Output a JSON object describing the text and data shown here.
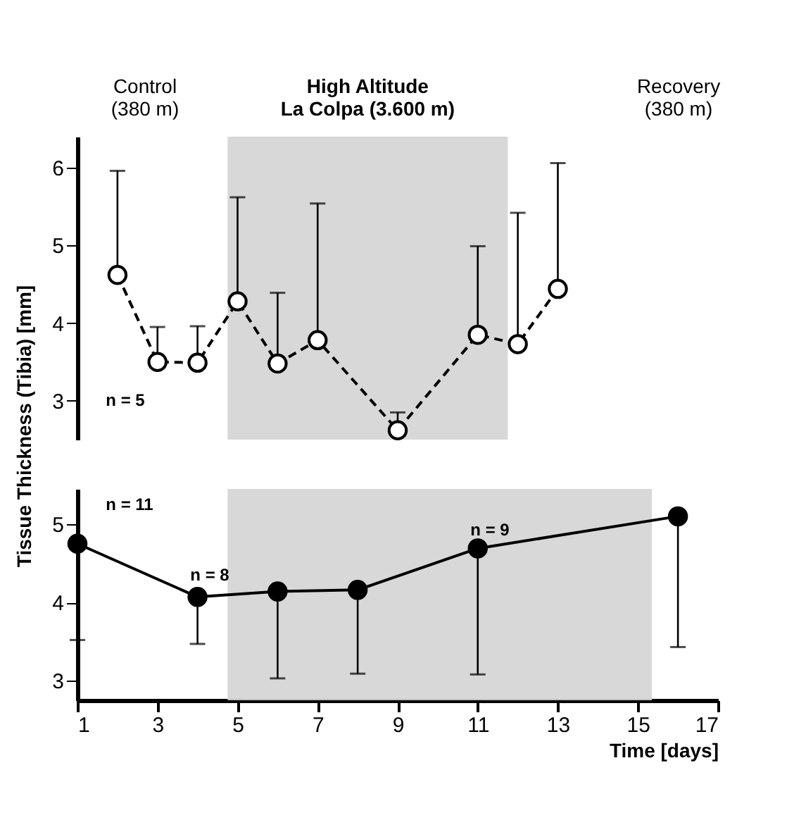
{
  "chart_data": [
    {
      "type": "line",
      "ylabel": "Tissue Thickness (Tibia) [mm]",
      "x": [
        2,
        3,
        4,
        5,
        6,
        7,
        9,
        11,
        12,
        13
      ],
      "xlim": [
        1,
        17
      ],
      "ylim": [
        2.5,
        6.4
      ],
      "yticks": [
        3,
        4,
        5,
        6
      ],
      "tick_labels": "y",
      "grid": false,
      "marker": "circle",
      "series": [
        {
          "color": "#000000",
          "line_style": "dashed",
          "values": [
            4.62,
            3.5,
            3.49,
            4.28,
            3.48,
            3.78,
            2.62,
            3.85,
            3.73,
            4.44
          ],
          "errors": [
            [
              4.62,
              5.96
            ],
            [
              3.5,
              3.95
            ],
            [
              3.49,
              3.96
            ],
            [
              4.28,
              5.62
            ],
            [
              3.48,
              4.39
            ],
            [
              3.78,
              5.54
            ],
            [
              2.62,
              2.85
            ],
            [
              3.85,
              4.99
            ],
            [
              3.73,
              5.42
            ],
            [
              4.44,
              6.06
            ]
          ]
        }
      ],
      "bands": [
        {
          "axis": "x",
          "from": 4.75,
          "to": 11.75,
          "label": "High Altitude\nLa Colpa (3.600 m)",
          "color": "#d4d4d4"
        }
      ],
      "annotations": [
        "Control\n(380 m)",
        "Recovery\n(380 m)",
        "n = 5"
      ],
      "legend": false
    },
    {
      "type": "line",
      "xlabel": "Time [days]",
      "x": [
        1,
        4,
        6,
        8,
        11,
        16
      ],
      "xlim": [
        1,
        17
      ],
      "xticks": [
        1,
        3,
        5,
        7,
        9,
        11,
        13,
        15,
        17
      ],
      "ylim": [
        2.75,
        5.45
      ],
      "yticks": [
        3,
        4,
        5
      ],
      "grid": false,
      "marker": "circle",
      "series": [
        {
          "color": "#000000",
          "line_style": "solid",
          "values": [
            4.75,
            4.07,
            4.14,
            4.16,
            4.69,
            5.1
          ],
          "errors": [
            [
              3.52,
              4.75
            ],
            [
              3.47,
              4.07
            ],
            [
              3.03,
              4.14
            ],
            [
              3.09,
              4.16
            ],
            [
              3.08,
              4.69
            ],
            [
              3.43,
              5.1
            ]
          ]
        }
      ],
      "bands": [
        {
          "axis": "x",
          "from": 4.75,
          "to": 15.35,
          "color": "#d4d4d4"
        }
      ],
      "annotations": [
        "n = 11",
        "n = 8",
        "n = 9"
      ],
      "legend": false
    }
  ]
}
